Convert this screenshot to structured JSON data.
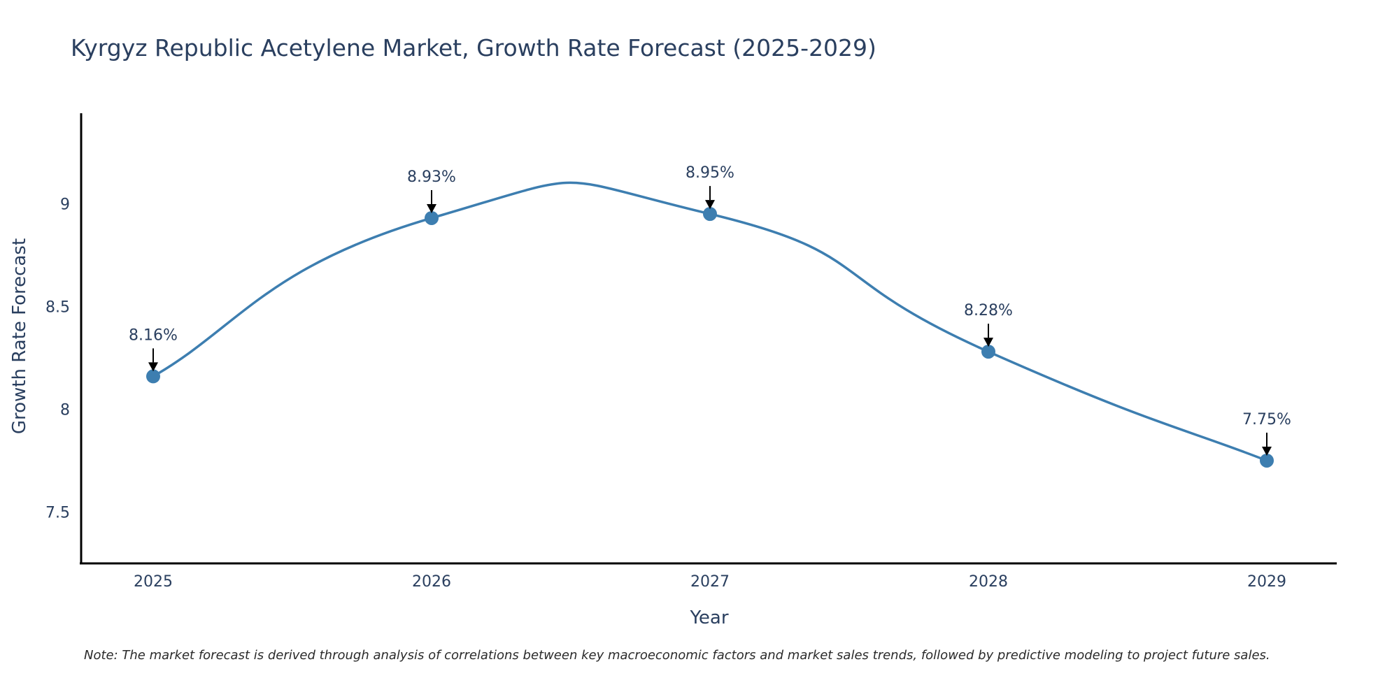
{
  "chart_data": {
    "type": "line",
    "title": "Kyrgyz Republic Acetylene Market, Growth Rate Forecast (2025-2029)",
    "xlabel": "Year",
    "ylabel": "Growth Rate Forecast",
    "categories": [
      "2025",
      "2026",
      "2027",
      "2028",
      "2029"
    ],
    "series": [
      {
        "name": "Growth Rate Forecast",
        "values": [
          8.16,
          8.93,
          8.95,
          8.28,
          7.75
        ],
        "labels": [
          "8.16%",
          "8.93%",
          "8.95%",
          "8.28%",
          "7.75%"
        ],
        "color": "#3d7eb0"
      }
    ],
    "yticks": [
      7.5,
      8,
      8.5,
      9
    ],
    "ytick_labels": [
      "7.5",
      "8",
      "8.5",
      "9"
    ],
    "ylim": [
      7.25,
      9.44
    ],
    "grid": false,
    "line_shape": "spline",
    "note": "Note: The market forecast is derived through analysis of correlations between key macroeconomic factors and market sales trends, followed by predictive modeling to project future sales."
  }
}
